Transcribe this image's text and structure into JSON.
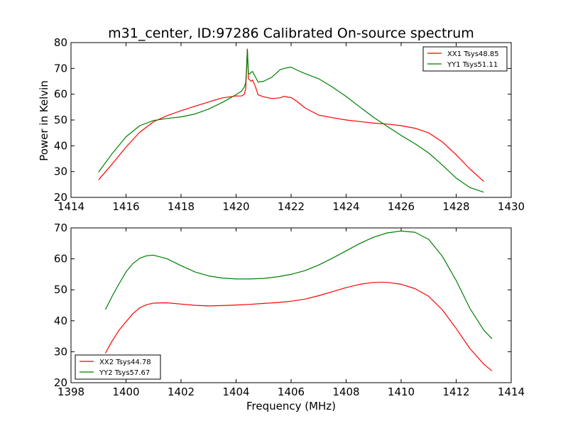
{
  "title": "m31_center, ID:97286 Calibrated On-source spectrum",
  "colors": {
    "red": "#ff0000",
    "green": "#007f00"
  },
  "chart_data": [
    {
      "type": "line",
      "title": "m31_center, ID:97286 Calibrated On-source spectrum",
      "xlabel": "",
      "ylabel": "Power in Kelvin",
      "xlim": [
        1414,
        1430
      ],
      "ylim": [
        20,
        80
      ],
      "xticks": [
        1414,
        1416,
        1418,
        1420,
        1422,
        1424,
        1426,
        1428,
        1430
      ],
      "yticks": [
        20,
        30,
        40,
        50,
        60,
        70,
        80
      ],
      "legend_position": "top-right",
      "series": [
        {
          "name": "XX1 Tsys48.85",
          "color": "#ff0000",
          "x": [
            1415.0,
            1415.5,
            1416.0,
            1416.5,
            1417.0,
            1417.5,
            1418.0,
            1418.5,
            1419.0,
            1419.5,
            1420.0,
            1420.2,
            1420.3,
            1420.35,
            1420.38,
            1420.41,
            1420.45,
            1420.5,
            1420.55,
            1420.6,
            1420.7,
            1420.8,
            1421.0,
            1421.3,
            1421.6,
            1421.75,
            1421.9,
            1422.0,
            1422.2,
            1422.5,
            1423.0,
            1423.5,
            1424.0,
            1424.5,
            1425.0,
            1425.5,
            1426.0,
            1426.5,
            1427.0,
            1427.5,
            1428.0,
            1428.5,
            1429.0
          ],
          "y": [
            26.8,
            33.0,
            39.5,
            45.3,
            49.3,
            51.7,
            53.6,
            55.3,
            57.0,
            58.6,
            59.3,
            59.3,
            60.0,
            62.0,
            69.0,
            77.5,
            66.0,
            65.5,
            65.0,
            65.5,
            63.0,
            59.8,
            59.0,
            58.3,
            58.6,
            59.2,
            58.8,
            58.7,
            57.3,
            54.7,
            51.9,
            50.9,
            50.0,
            49.4,
            48.8,
            48.4,
            47.8,
            46.8,
            45.0,
            41.5,
            36.5,
            31.0,
            26.2
          ]
        },
        {
          "name": "YY1 Tsys51.11",
          "color": "#007f00",
          "x": [
            1415.0,
            1415.5,
            1416.0,
            1416.5,
            1417.0,
            1417.5,
            1418.0,
            1418.5,
            1419.0,
            1419.5,
            1420.0,
            1420.2,
            1420.3,
            1420.35,
            1420.38,
            1420.41,
            1420.45,
            1420.5,
            1420.55,
            1420.6,
            1420.7,
            1420.8,
            1421.0,
            1421.3,
            1421.6,
            1421.75,
            1422.0,
            1422.2,
            1422.5,
            1423.0,
            1423.5,
            1424.0,
            1424.5,
            1425.0,
            1425.5,
            1426.0,
            1426.5,
            1427.0,
            1427.5,
            1428.0,
            1428.5,
            1429.0
          ],
          "y": [
            29.8,
            37.0,
            43.5,
            47.8,
            49.8,
            50.6,
            51.2,
            52.3,
            54.2,
            56.8,
            59.8,
            61.2,
            62.8,
            64.5,
            70.0,
            77.5,
            68.0,
            67.8,
            68.5,
            68.8,
            66.8,
            64.7,
            65.0,
            66.6,
            69.5,
            70.0,
            70.5,
            69.4,
            68.0,
            66.0,
            62.8,
            59.1,
            55.0,
            51.0,
            47.5,
            44.0,
            40.8,
            37.2,
            32.5,
            27.5,
            23.8,
            22.0
          ]
        }
      ]
    },
    {
      "type": "line",
      "title": "",
      "xlabel": "Frequency (MHz)",
      "ylabel": "",
      "xlim": [
        1398,
        1414
      ],
      "ylim": [
        20,
        70
      ],
      "xticks": [
        1398,
        1400,
        1402,
        1404,
        1406,
        1408,
        1410,
        1412,
        1414
      ],
      "yticks": [
        20,
        30,
        40,
        50,
        60,
        70
      ],
      "legend_position": "bottom-left",
      "series": [
        {
          "name": "XX2 Tsys44.78",
          "color": "#ff0000",
          "x": [
            1399.25,
            1399.5,
            1399.75,
            1400.0,
            1400.25,
            1400.5,
            1400.75,
            1401.0,
            1401.5,
            1402.0,
            1402.5,
            1403.0,
            1403.5,
            1404.0,
            1404.5,
            1405.0,
            1405.5,
            1406.0,
            1406.5,
            1407.0,
            1407.5,
            1408.0,
            1408.5,
            1409.0,
            1409.5,
            1410.0,
            1410.5,
            1411.0,
            1411.5,
            1412.0,
            1412.5,
            1413.0,
            1413.3
          ],
          "y": [
            29.5,
            33.5,
            37.0,
            39.7,
            42.3,
            44.2,
            45.2,
            45.7,
            45.8,
            45.4,
            45.0,
            44.8,
            44.9,
            45.1,
            45.3,
            45.6,
            45.9,
            46.3,
            47.0,
            48.1,
            49.4,
            50.7,
            51.8,
            52.4,
            52.4,
            51.8,
            50.4,
            47.9,
            43.5,
            37.5,
            31.0,
            26.0,
            23.8
          ]
        },
        {
          "name": "YY2 Tsys57.67",
          "color": "#007f00",
          "x": [
            1399.25,
            1399.5,
            1399.75,
            1400.0,
            1400.25,
            1400.5,
            1400.75,
            1401.0,
            1401.5,
            1402.0,
            1402.5,
            1403.0,
            1403.5,
            1404.0,
            1404.5,
            1405.0,
            1405.5,
            1406.0,
            1406.5,
            1407.0,
            1407.5,
            1408.0,
            1408.5,
            1409.0,
            1409.5,
            1410.0,
            1410.5,
            1411.0,
            1411.5,
            1412.0,
            1412.5,
            1413.0,
            1413.3
          ],
          "y": [
            43.6,
            48.0,
            52.0,
            55.8,
            58.5,
            60.2,
            61.0,
            61.2,
            60.0,
            57.8,
            55.8,
            54.5,
            53.8,
            53.5,
            53.5,
            53.7,
            54.2,
            55.0,
            56.2,
            58.0,
            60.2,
            62.6,
            65.0,
            67.0,
            68.4,
            69.0,
            68.6,
            66.3,
            60.8,
            53.0,
            44.0,
            37.0,
            34.2
          ]
        }
      ]
    }
  ]
}
